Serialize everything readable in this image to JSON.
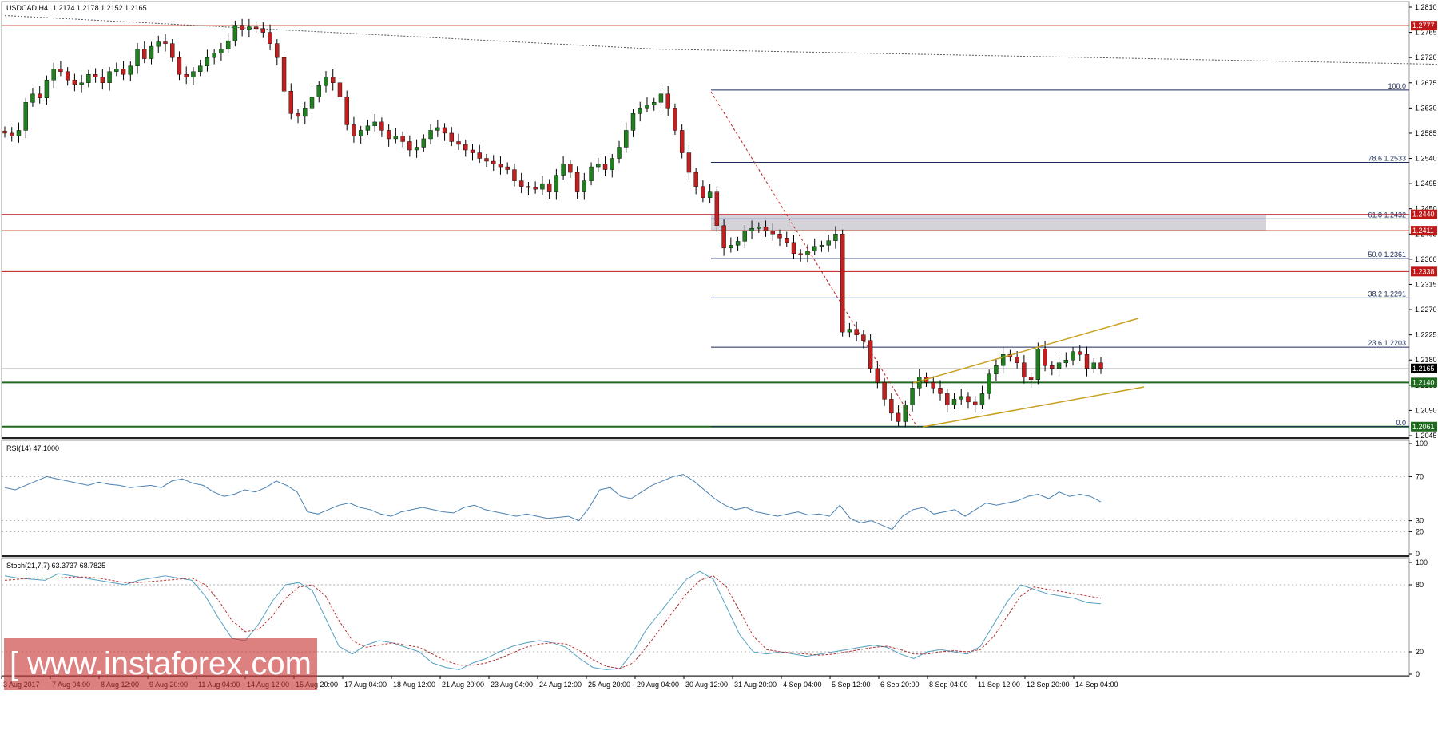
{
  "header": {
    "symbol": "USDCAD,H4",
    "ohlc": "1.2174 1.2178 1.2152 1.2165"
  },
  "watermark": {
    "text": "[ www.instaforex.com ]"
  },
  "colors": {
    "bull": "#208020",
    "bear": "#c02020",
    "wick": "#000000",
    "ma": "#555555",
    "channel": "#c8a020",
    "support": "#1f6a1f",
    "resistance": "#c01818",
    "fib": "#1a2a5a",
    "zone": "#c8c8d0",
    "rsi": "#4a80b0",
    "stoch_main": "#55a0c0",
    "stoch_signal": "#b03030"
  },
  "chart_data": [
    {
      "type": "candlestick",
      "title": "USDCAD,H4",
      "ylim": [
        1.2045,
        1.281
      ],
      "y_ticks": [
        "1.2810",
        "1.2765",
        "1.2720",
        "1.2675",
        "1.2630",
        "1.2585",
        "1.2540",
        "1.2495",
        "1.2450",
        "1.2405",
        "1.2360",
        "1.2315",
        "1.2270",
        "1.2225",
        "1.2180",
        "1.2135",
        "1.2090",
        "1.2045"
      ],
      "x_labels": [
        "3 Aug 2017",
        "7 Aug 04:00",
        "8 Aug 12:00",
        "9 Aug 20:00",
        "11 Aug 04:00",
        "14 Aug 12:00",
        "15 Aug 20:00",
        "17 Aug 04:00",
        "18 Aug 12:00",
        "21 Aug 20:00",
        "23 Aug 04:00",
        "24 Aug 12:00",
        "25 Aug 20:00",
        "29 Aug 04:00",
        "30 Aug 12:00",
        "31 Aug 20:00",
        "4 Sep 04:00",
        "5 Sep 12:00",
        "6 Sep 20:00",
        "8 Sep 04:00",
        "11 Sep 12:00",
        "12 Sep 20:00",
        "14 Sep 04:00"
      ],
      "closes": [
        1.2585,
        1.258,
        1.259,
        1.264,
        1.2655,
        1.2648,
        1.268,
        1.27,
        1.2695,
        1.268,
        1.2672,
        1.2675,
        1.269,
        1.2685,
        1.2675,
        1.2695,
        1.27,
        1.269,
        1.2705,
        1.2735,
        1.2718,
        1.274,
        1.2748,
        1.2745,
        1.272,
        1.269,
        1.2685,
        1.2695,
        1.2705,
        1.272,
        1.2728,
        1.2735,
        1.275,
        1.2778,
        1.277,
        1.2775,
        1.2772,
        1.2765,
        1.2745,
        1.272,
        1.266,
        1.262,
        1.2615,
        1.263,
        1.265,
        1.267,
        1.2685,
        1.2675,
        1.265,
        1.26,
        1.258,
        1.259,
        1.2598,
        1.2605,
        1.259,
        1.2575,
        1.258,
        1.257,
        1.2555,
        1.256,
        1.2575,
        1.259,
        1.2595,
        1.2585,
        1.257,
        1.2565,
        1.2555,
        1.255,
        1.254,
        1.2535,
        1.253,
        1.2525,
        1.252,
        1.25,
        1.249,
        1.2488,
        1.2485,
        1.2495,
        1.248,
        1.251,
        1.253,
        1.2515,
        1.248,
        1.25,
        1.2525,
        1.253,
        1.252,
        1.254,
        1.256,
        1.259,
        1.262,
        1.263,
        1.2635,
        1.264,
        1.2655,
        1.263,
        1.259,
        1.255,
        1.2515,
        1.249,
        1.247,
        1.248,
        1.242,
        1.238,
        1.2385,
        1.2392,
        1.241,
        1.2415,
        1.2418,
        1.241,
        1.2405,
        1.2398,
        1.239,
        1.237,
        1.2368,
        1.2375,
        1.2383,
        1.2385,
        1.2393,
        1.2405,
        1.223,
        1.2235,
        1.2225,
        1.2215,
        1.2165,
        1.214,
        1.211,
        1.2085,
        1.207,
        1.21,
        1.213,
        1.215,
        1.214,
        1.213,
        1.212,
        1.21,
        1.211,
        1.2115,
        1.2105,
        1.21,
        1.212,
        1.2155,
        1.217,
        1.219,
        1.2185,
        1.2175,
        1.215,
        1.2145,
        1.22,
        1.217,
        1.2165,
        1.2175,
        1.218,
        1.2195,
        1.219,
        1.2165,
        1.2175,
        1.2165
      ],
      "series": [
        {
          "name": "MA",
          "points": [
            [
              0,
              1.2795
            ],
            [
              60,
              1.2735
            ],
            [
              180,
              1.269
            ],
            [
              240,
              1.267
            ],
            [
              300,
              1.2645
            ],
            [
              360,
              1.262
            ],
            [
              420,
              1.26
            ],
            [
              480,
              1.2585
            ],
            [
              540,
              1.2575
            ],
            [
              600,
              1.2565
            ],
            [
              660,
              1.2555
            ],
            [
              700,
              1.2545
            ],
            [
              760,
              1.253
            ],
            [
              820,
              1.2515
            ],
            [
              880,
              1.25
            ]
          ]
        }
      ],
      "horizontal_levels": [
        {
          "label": "1.2777",
          "value": 1.2777,
          "kind": "resistance"
        },
        {
          "label": "1.2440",
          "value": 1.244,
          "kind": "resistance"
        },
        {
          "label": "1.2411",
          "value": 1.2411,
          "kind": "resistance"
        },
        {
          "label": "1.2338",
          "value": 1.2338,
          "kind": "resistance"
        },
        {
          "label": "1.2140",
          "value": 1.214,
          "kind": "support"
        },
        {
          "label": "1.2061",
          "value": 1.2061,
          "kind": "support"
        }
      ],
      "current_price": "1.2165",
      "fibonacci": [
        {
          "label": "100.0",
          "value": 1.2662
        },
        {
          "label": "78.6 1.2533",
          "value": 1.2533
        },
        {
          "label": "61.8 1.2432",
          "value": 1.2432
        },
        {
          "label": "50.0 1.2361",
          "value": 1.2361
        },
        {
          "label": "38.2 1.2291",
          "value": 1.2291
        },
        {
          "label": "23.6 1.2203",
          "value": 1.2203
        },
        {
          "label": "0.0",
          "value": 1.2061
        }
      ],
      "zone": {
        "from": 1.2411,
        "to": 1.244
      }
    },
    {
      "type": "line",
      "title": "RSI(14) 47.1000",
      "ylim": [
        0,
        100
      ],
      "y_ticks": [
        "100",
        "70",
        "30",
        "20",
        "0"
      ],
      "values": [
        60,
        58,
        62,
        66,
        70,
        68,
        66,
        64,
        62,
        65,
        63,
        62,
        60,
        61,
        62,
        60,
        66,
        68,
        64,
        62,
        56,
        52,
        54,
        58,
        56,
        60,
        66,
        62,
        56,
        38,
        36,
        40,
        44,
        46,
        42,
        40,
        36,
        34,
        38,
        40,
        42,
        40,
        38,
        37,
        42,
        44,
        40,
        38,
        36,
        34,
        36,
        34,
        32,
        33,
        34,
        30,
        42,
        58,
        60,
        52,
        50,
        56,
        62,
        66,
        70,
        72,
        66,
        58,
        50,
        44,
        40,
        42,
        38,
        36,
        34,
        36,
        38,
        35,
        36,
        34,
        44,
        32,
        28,
        30,
        26,
        22,
        34,
        40,
        42,
        36,
        38,
        40,
        34,
        40,
        46,
        44,
        46,
        48,
        52,
        54,
        50,
        56,
        52,
        54,
        52,
        47
      ]
    },
    {
      "type": "line",
      "title": "Stoch(21,7,7) 63.3737 68.7825",
      "ylim": [
        0,
        100
      ],
      "y_ticks": [
        "100",
        "80",
        "20",
        "0"
      ],
      "series": [
        {
          "name": "Main",
          "values": [
            88,
            86,
            85,
            84,
            90,
            88,
            86,
            84,
            82,
            80,
            84,
            86,
            88,
            86,
            84,
            70,
            50,
            32,
            30,
            45,
            65,
            80,
            82,
            75,
            50,
            25,
            18,
            26,
            30,
            28,
            24,
            20,
            10,
            6,
            4,
            10,
            14,
            20,
            25,
            28,
            30,
            28,
            24,
            14,
            6,
            4,
            5,
            20,
            40,
            55,
            70,
            85,
            92,
            85,
            60,
            35,
            20,
            18,
            20,
            18,
            16,
            18,
            20,
            22,
            24,
            26,
            24,
            18,
            14,
            20,
            22,
            20,
            18,
            25,
            45,
            65,
            80,
            76,
            72,
            70,
            68,
            64,
            63
          ]
        },
        {
          "name": "Signal",
          "values": [
            84,
            85,
            86,
            86,
            86,
            87,
            87,
            86,
            84,
            82,
            82,
            83,
            84,
            85,
            86,
            80,
            66,
            48,
            38,
            40,
            52,
            68,
            78,
            80,
            70,
            48,
            30,
            24,
            26,
            28,
            26,
            24,
            18,
            12,
            8,
            8,
            10,
            14,
            19,
            24,
            27,
            28,
            27,
            21,
            13,
            7,
            5,
            10,
            24,
            40,
            56,
            72,
            84,
            88,
            78,
            56,
            34,
            22,
            20,
            19,
            18,
            17,
            18,
            20,
            22,
            24,
            25,
            22,
            18,
            18,
            20,
            21,
            20,
            22,
            34,
            52,
            70,
            78,
            76,
            74,
            72,
            70,
            68
          ]
        }
      ]
    }
  ]
}
